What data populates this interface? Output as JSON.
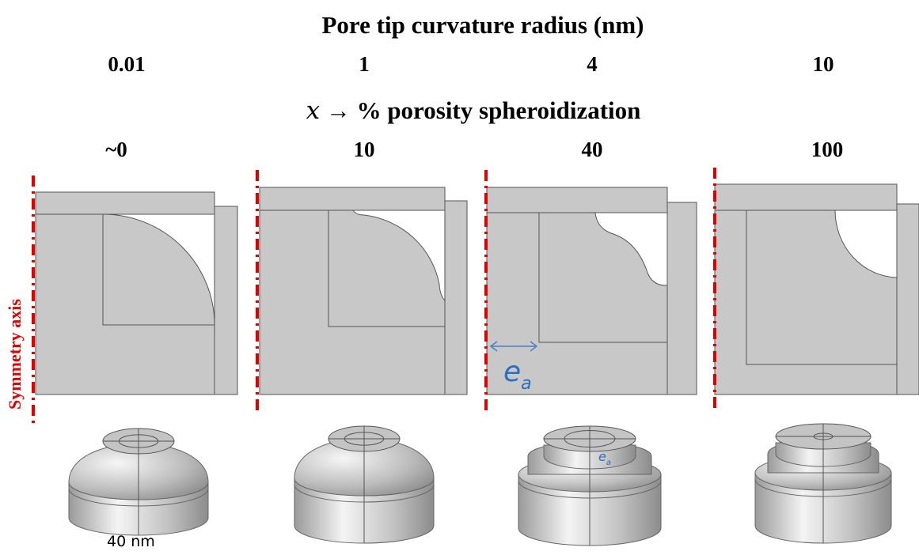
{
  "header": {
    "title": "Pore tip curvature radius (nm)",
    "radii": [
      "0.01",
      "1",
      "4",
      "10"
    ]
  },
  "subheader": {
    "variable": "x",
    "arrow": "→",
    "title": "% porosity spheroidization",
    "values": [
      "~0",
      "10",
      "40",
      "100"
    ]
  },
  "axis_label": "Symmetry axis",
  "dimension_label": {
    "base": "e",
    "sub": "a"
  },
  "scale_label": "40 nm"
}
